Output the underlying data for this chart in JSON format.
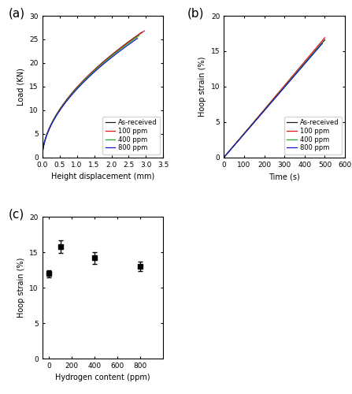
{
  "subplot_a": {
    "label": "(a)",
    "xlabel": "Height displacement (mm)",
    "ylabel": "Load (KN)",
    "xlim": [
      0,
      3.5
    ],
    "ylim": [
      0,
      30
    ],
    "xticks": [
      0.0,
      0.5,
      1.0,
      1.5,
      2.0,
      2.5,
      3.0,
      3.5
    ],
    "yticks": [
      0,
      5,
      10,
      15,
      20,
      25,
      30
    ],
    "curves": {
      "As-received": {
        "color": "#1a1a1a",
        "x_end": 2.88,
        "y_end": 26.5
      },
      "100 ppm": {
        "color": "#e81010",
        "x_end": 2.95,
        "y_end": 26.8
      },
      "400 ppm": {
        "color": "#22aa22",
        "x_end": 2.8,
        "y_end": 25.8
      },
      "800 ppm": {
        "color": "#1515cc",
        "x_end": 2.75,
        "y_end": 25.2
      }
    },
    "legend_loc": "lower right"
  },
  "subplot_b": {
    "label": "(b)",
    "xlabel": "Time (s)",
    "ylabel": "Hoop strain (%)",
    "xlim": [
      0,
      600
    ],
    "ylim": [
      0,
      20
    ],
    "xticks": [
      0,
      100,
      200,
      300,
      400,
      500,
      600
    ],
    "yticks": [
      0,
      5,
      10,
      15,
      20
    ],
    "curves": {
      "As-received": {
        "color": "#1a1a1a",
        "t_end": 500,
        "s_end": 16.6
      },
      "100 ppm": {
        "color": "#e81010",
        "t_end": 500,
        "s_end": 16.9
      },
      "400 ppm": {
        "color": "#22aa22",
        "t_end": 490,
        "s_end": 16.3
      },
      "800 ppm": {
        "color": "#1515cc",
        "t_end": 488,
        "s_end": 16.1
      }
    },
    "legend_loc": "lower right"
  },
  "subplot_c": {
    "label": "(c)",
    "xlabel": "Hydrogen content (ppm)",
    "ylabel": "Hoop strain (%)",
    "xlim": [
      -60,
      1000
    ],
    "ylim": [
      0,
      20
    ],
    "xticks": [
      0,
      200,
      400,
      600,
      800
    ],
    "yticks": [
      0,
      5,
      10,
      15,
      20
    ],
    "data_x": [
      0,
      100,
      400,
      800
    ],
    "data_y": [
      12.0,
      15.8,
      14.2,
      13.0
    ],
    "data_yerr": [
      0.5,
      0.9,
      0.8,
      0.7
    ],
    "marker_color": "#000000",
    "marker_size": 5
  },
  "background_color": "#ffffff",
  "label_fontsize": 11,
  "axis_fontsize": 7,
  "tick_fontsize": 6.5,
  "legend_fontsize": 6
}
